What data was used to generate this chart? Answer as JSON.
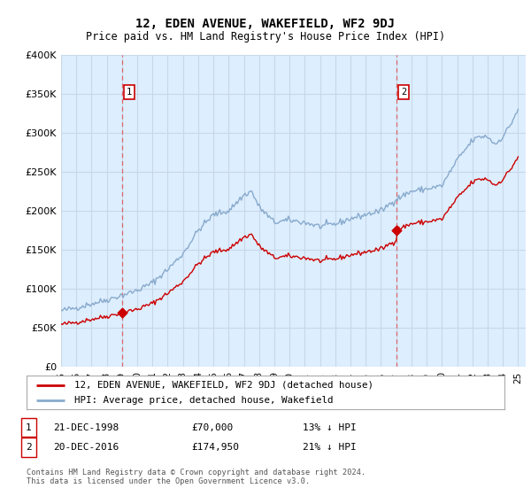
{
  "title": "12, EDEN AVENUE, WAKEFIELD, WF2 9DJ",
  "subtitle": "Price paid vs. HM Land Registry's House Price Index (HPI)",
  "ylim": [
    0,
    400000
  ],
  "yticks": [
    0,
    50000,
    100000,
    150000,
    200000,
    250000,
    300000,
    350000,
    400000
  ],
  "ytick_labels": [
    "£0",
    "£50K",
    "£100K",
    "£150K",
    "£200K",
    "£250K",
    "£300K",
    "£350K",
    "£400K"
  ],
  "xlim_start": 1995.0,
  "xlim_end": 2025.5,
  "sale1_date": 1999.0,
  "sale1_price": 70000,
  "sale1_label": "21-DEC-1998",
  "sale1_amount": "£70,000",
  "sale1_hpi": "13% ↓ HPI",
  "sale2_date": 2017.0,
  "sale2_price": 174950,
  "sale2_label": "20-DEC-2016",
  "sale2_amount": "£174,950",
  "sale2_hpi": "21% ↓ HPI",
  "legend_line1": "12, EDEN AVENUE, WAKEFIELD, WF2 9DJ (detached house)",
  "legend_line2": "HPI: Average price, detached house, Wakefield",
  "copyright": "Contains HM Land Registry data © Crown copyright and database right 2024.\nThis data is licensed under the Open Government Licence v3.0.",
  "line_color_red": "#cc0000",
  "line_color_blue": "#88aacc",
  "background_color": "#ddeeff",
  "plot_bg": "#ffffff",
  "grid_color": "#c8d8e8",
  "dashed_line_color": "#dd6666"
}
